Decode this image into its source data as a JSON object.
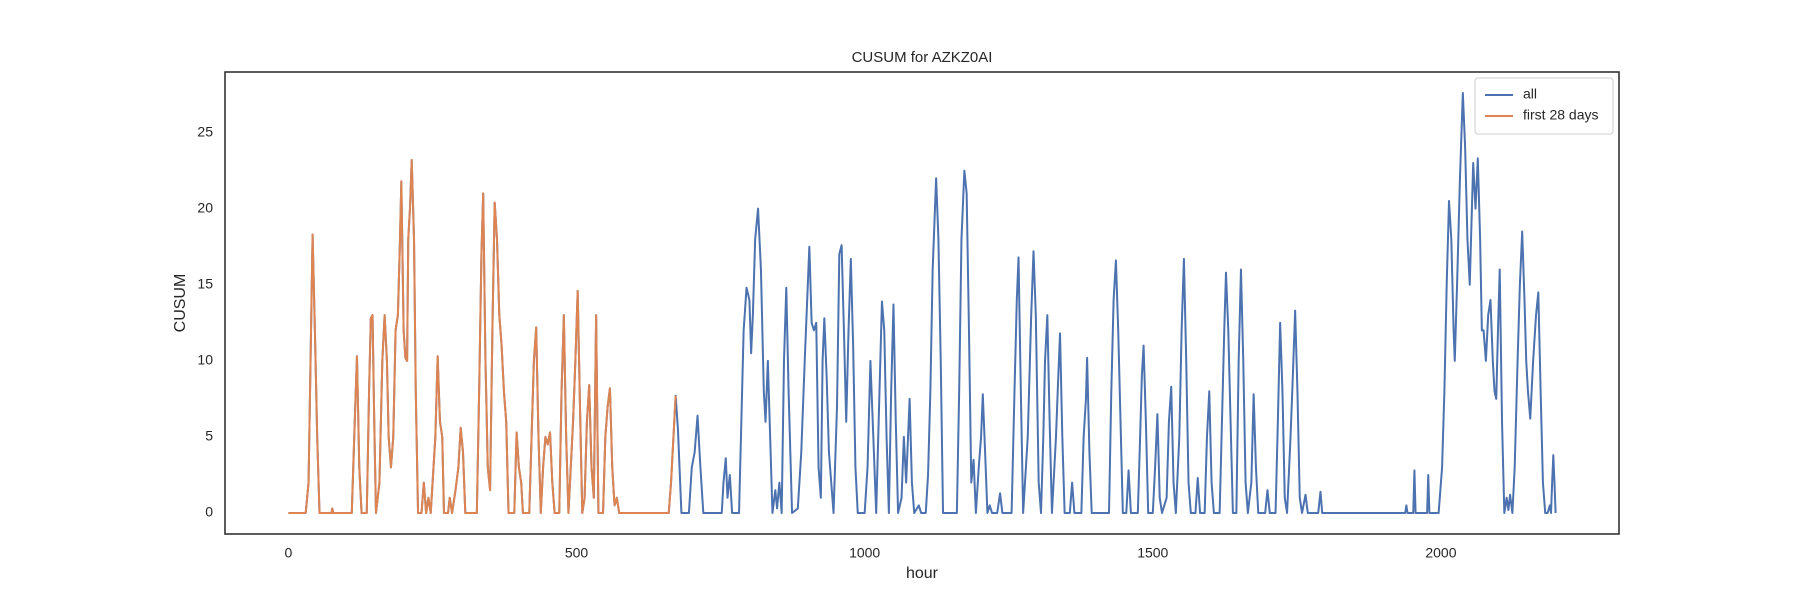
{
  "chart_data": {
    "type": "line",
    "title": "CUSUM for AZKZ0AI",
    "xlabel": "hour",
    "ylabel": "CUSUM",
    "xlim": [
      -110,
      2309
    ],
    "ylim": [
      -1.38,
      28.98
    ],
    "xticks": [
      0,
      500,
      1000,
      1500,
      2000
    ],
    "yticks": [
      0,
      5,
      10,
      15,
      20,
      25
    ],
    "grid": false,
    "legend": "upper right",
    "series": [
      {
        "name": "all",
        "color": "#4c72b0",
        "x": [
          0,
          30,
          35,
          38,
          42,
          46,
          50,
          54,
          75,
          76,
          78,
          110,
          116,
          119,
          123,
          127,
          136,
          140,
          143,
          146,
          149,
          152,
          158,
          163,
          167,
          171,
          174,
          178,
          182,
          186,
          190,
          193,
          196,
          200,
          203,
          206,
          208,
          211,
          214,
          218,
          221,
          225,
          231,
          235,
          239,
          243,
          247,
          255,
          259,
          263,
          267,
          270,
          277,
          280,
          284,
          290,
          295,
          299,
          303,
          307,
          327,
          331,
          335,
          338,
          342,
          346,
          350,
          354,
          358,
          362,
          366,
          370,
          374,
          378,
          382,
          392,
          396,
          400,
          404,
          407,
          418,
          422,
          426,
          430,
          434,
          438,
          442,
          446,
          450,
          454,
          458,
          462,
          470,
          474,
          478,
          482,
          486,
          494,
          498,
          502,
          506,
          510,
          514,
          518,
          522,
          526,
          530,
          534,
          538,
          546,
          550,
          554,
          558,
          562,
          566,
          570,
          574,
          660,
          664,
          672,
          676,
          682,
          695,
          700,
          705,
          710,
          715,
          720,
          752,
          755,
          759,
          762,
          766,
          770,
          782,
          786,
          790,
          795,
          800,
          803,
          806,
          810,
          815,
          820,
          825,
          828,
          832,
          836,
          840,
          845,
          848,
          852,
          856,
          860,
          864,
          868,
          874,
          884,
          890,
          896,
          904,
          908,
          912,
          916,
          920,
          924,
          927,
          930,
          934,
          938,
          942,
          946,
          952,
          956,
          960,
          964,
          968,
          972,
          976,
          980,
          984,
          988,
          1000,
          1005,
          1010,
          1015,
          1020,
          1025,
          1030,
          1034,
          1038,
          1042,
          1046,
          1050,
          1054,
          1058,
          1064,
          1068,
          1072,
          1078,
          1082,
          1086,
          1094,
          1098,
          1106,
          1110,
          1114,
          1118,
          1124,
          1128,
          1132,
          1136,
          1160,
          1164,
          1168,
          1173,
          1177,
          1181,
          1185,
          1189,
          1193,
          1198,
          1202,
          1205,
          1209,
          1213,
          1217,
          1221,
          1230,
          1235,
          1239,
          1255,
          1260,
          1264,
          1267,
          1271,
          1275,
          1283,
          1289,
          1293,
          1297,
          1302,
          1306,
          1310,
          1313,
          1317,
          1321,
          1325,
          1332,
          1336,
          1339,
          1343,
          1347,
          1356,
          1360,
          1364,
          1376,
          1380,
          1384,
          1386,
          1390,
          1394,
          1424,
          1428,
          1432,
          1436,
          1440,
          1444,
          1448,
          1454,
          1458,
          1462,
          1474,
          1478,
          1481,
          1484,
          1488,
          1492,
          1500,
          1504,
          1508,
          1512,
          1516,
          1524,
          1528,
          1532,
          1536,
          1540,
          1546,
          1550,
          1554,
          1558,
          1562,
          1566,
          1574,
          1578,
          1582,
          1590,
          1594,
          1598,
          1602,
          1606,
          1616,
          1620,
          1624,
          1627,
          1631,
          1635,
          1639,
          1645,
          1649,
          1653,
          1657,
          1661,
          1665,
          1671,
          1675,
          1679,
          1683,
          1695,
          1699,
          1703,
          1713,
          1717,
          1721,
          1725,
          1729,
          1733,
          1739,
          1743,
          1747,
          1751,
          1755,
          1759,
          1765,
          1769,
          1787,
          1791,
          1794,
          1938,
          1940,
          1942,
          1952,
          1954,
          1956,
          1976,
          1978,
          1980,
          1996,
          2002,
          2006,
          2010,
          2014,
          2018,
          2022,
          2024,
          2028,
          2033,
          2038,
          2042,
          2046,
          2050,
          2053,
          2056,
          2060,
          2064,
          2068,
          2071,
          2074,
          2078,
          2082,
          2086,
          2090,
          2093,
          2096,
          2099,
          2102,
          2106,
          2110,
          2114,
          2117,
          2120,
          2124,
          2128,
          2133,
          2137,
          2141,
          2145,
          2148,
          2151,
          2155,
          2160,
          2165,
          2169,
          2173,
          2177,
          2181,
          2185,
          2189,
          2191,
          2193,
          2195,
          2197,
          2199
        ],
        "values": [
          0,
          0,
          2,
          9,
          18.3,
          12,
          5,
          0,
          0,
          0.3,
          0,
          0,
          7,
          10.3,
          3,
          0,
          0,
          8,
          12.8,
          13,
          6,
          0,
          2,
          10,
          13,
          10,
          5,
          3,
          5,
          12,
          13,
          17,
          21.8,
          12,
          10.2,
          10,
          18,
          20,
          23.2,
          18,
          8,
          0,
          0,
          2,
          0,
          1,
          0,
          5,
          10.3,
          6,
          5,
          0,
          0,
          1,
          0,
          1.5,
          3,
          5.6,
          4,
          0,
          0,
          8,
          17,
          21,
          10,
          3,
          1.5,
          12,
          20.4,
          18,
          13,
          11,
          8,
          6,
          0,
          0,
          5.3,
          3,
          2,
          0,
          0,
          5,
          10,
          12.2,
          5,
          0,
          3,
          5,
          4.5,
          5.3,
          2,
          0,
          0,
          8,
          13,
          5,
          0,
          6,
          10,
          14.6,
          7,
          0,
          1,
          6,
          8.4,
          3,
          1,
          13,
          0,
          0,
          5,
          7,
          8.2,
          3,
          0.5,
          1,
          0,
          0,
          2,
          7.7,
          5.5,
          0,
          0,
          3,
          4,
          6.4,
          3,
          0,
          0,
          2,
          3.6,
          1,
          2.5,
          0,
          0,
          6,
          12,
          14.8,
          14,
          10.5,
          13,
          18,
          20,
          16,
          8,
          6,
          10,
          5,
          0,
          1.5,
          0.3,
          2,
          0,
          10,
          14.8,
          8,
          0,
          0.3,
          4,
          10,
          17.5,
          12.5,
          12,
          12.5,
          3,
          1,
          10,
          12.8,
          9,
          4,
          2,
          0,
          7,
          17,
          17.6,
          12,
          6,
          12,
          16.7,
          11,
          3,
          0,
          0,
          3,
          10,
          5,
          0,
          7,
          13.9,
          12,
          5,
          0,
          8,
          13.7,
          6,
          0,
          1,
          5,
          2,
          7.5,
          2,
          0,
          0.5,
          0,
          0,
          2.5,
          8,
          16,
          22,
          18,
          10,
          0,
          0,
          8,
          18,
          22.5,
          21,
          12,
          2,
          3.5,
          0,
          3,
          5,
          7.8,
          4,
          0,
          0.5,
          0,
          0,
          1.3,
          0,
          0,
          8,
          14,
          16.8,
          8,
          0,
          5,
          13,
          17.2,
          13,
          2,
          0,
          5,
          10,
          13,
          6,
          0,
          5,
          9,
          11.8,
          5,
          0,
          0,
          2,
          0,
          0,
          5,
          7.5,
          10.2,
          4,
          0,
          0,
          8,
          14,
          16.6,
          12,
          6,
          0,
          0,
          2.8,
          0,
          0,
          5,
          9,
          11,
          6,
          0,
          0,
          3,
          6.5,
          1,
          0,
          1,
          6,
          8.3,
          2,
          0,
          5,
          12,
          16.7,
          10,
          2,
          0,
          0,
          2.3,
          0,
          0,
          5,
          8,
          2,
          0,
          0,
          6,
          12,
          15.8,
          12,
          6,
          0,
          0,
          10,
          16,
          10,
          2,
          0,
          2,
          7.8,
          3,
          0,
          0,
          1.5,
          0,
          0,
          6,
          12.5,
          8,
          1,
          0,
          5,
          9,
          13.3,
          8,
          1,
          0,
          1.2,
          0,
          0,
          1.4,
          0,
          0,
          0.5,
          0,
          0,
          2.8,
          0,
          0,
          2.5,
          0,
          0,
          3,
          8,
          15,
          20.5,
          18,
          12,
          10,
          15,
          22,
          27.6,
          24,
          18,
          15,
          19,
          23,
          20,
          23.3,
          18,
          12,
          12,
          10,
          13,
          14,
          10,
          8,
          7.5,
          12,
          16,
          6,
          0,
          1,
          0.2,
          1.2,
          0,
          3,
          10,
          15,
          18.5,
          14,
          10,
          8,
          6.2,
          10,
          13,
          14.5,
          8,
          2,
          0,
          0,
          0.5,
          0,
          2,
          3.8,
          2,
          0
        ]
      },
      {
        "name": "first 28 days",
        "color": "#dd8452",
        "x": [
          0,
          30,
          35,
          38,
          42,
          46,
          50,
          54,
          75,
          76,
          78,
          110,
          116,
          119,
          123,
          127,
          136,
          140,
          143,
          146,
          149,
          152,
          158,
          163,
          167,
          171,
          174,
          178,
          182,
          186,
          190,
          193,
          196,
          200,
          203,
          206,
          208,
          211,
          214,
          218,
          221,
          225,
          231,
          235,
          239,
          243,
          247,
          255,
          259,
          263,
          267,
          270,
          277,
          280,
          284,
          290,
          295,
          299,
          303,
          307,
          327,
          331,
          335,
          338,
          342,
          346,
          350,
          354,
          358,
          362,
          366,
          370,
          374,
          378,
          382,
          392,
          396,
          400,
          404,
          407,
          418,
          422,
          426,
          430,
          434,
          438,
          442,
          446,
          450,
          454,
          458,
          462,
          470,
          474,
          478,
          482,
          486,
          494,
          498,
          502,
          506,
          510,
          514,
          518,
          522,
          526,
          530,
          534,
          538,
          546,
          550,
          554,
          558,
          562,
          566,
          570,
          574,
          660,
          664,
          672
        ],
        "values": [
          0,
          0,
          2,
          9,
          18.3,
          12,
          5,
          0,
          0,
          0.3,
          0,
          0,
          7,
          10.3,
          3,
          0,
          0,
          8,
          12.8,
          13,
          6,
          0,
          2,
          10,
          13,
          10,
          5,
          3,
          5,
          12,
          13,
          17,
          21.8,
          12,
          10.2,
          10,
          18,
          20,
          23.2,
          18,
          8,
          0,
          0,
          2,
          0,
          1,
          0,
          5,
          10.3,
          6,
          5,
          0,
          0,
          1,
          0,
          1.5,
          3,
          5.6,
          4,
          0,
          0,
          8,
          17,
          21,
          10,
          3,
          1.5,
          12,
          20.4,
          18,
          13,
          11,
          8,
          6,
          0,
          0,
          5.3,
          3,
          2,
          0,
          0,
          5,
          10,
          12.2,
          5,
          0,
          3,
          5,
          4.5,
          5.3,
          2,
          0,
          0,
          8,
          13,
          5,
          0,
          6,
          10,
          14.6,
          7,
          0,
          1,
          6,
          8.4,
          3,
          1,
          13,
          0,
          0,
          5,
          7,
          8.2,
          3,
          0.5,
          1,
          0,
          0,
          2,
          7.7
        ]
      }
    ]
  }
}
